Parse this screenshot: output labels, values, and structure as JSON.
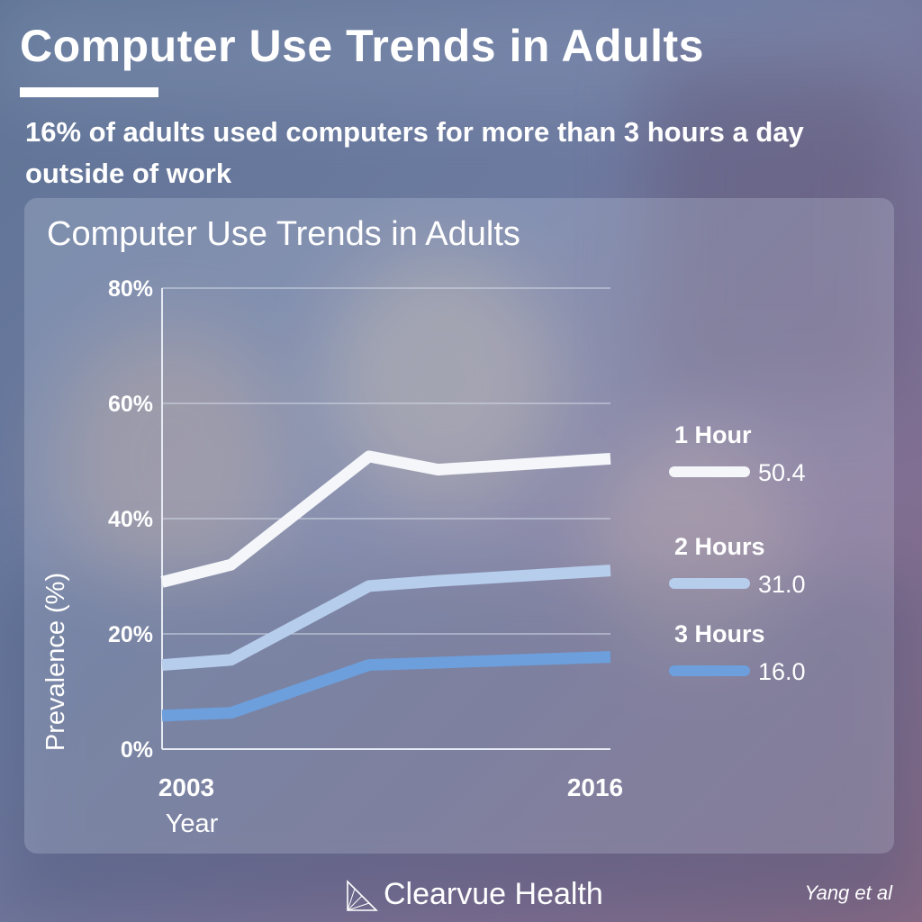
{
  "page": {
    "title": "Computer Use Trends in Adults",
    "subtitle": "16% of adults used computers for more than 3 hours a day outside of work",
    "brand": "Clearvue Health",
    "credit": "Yang et al"
  },
  "colors": {
    "series_1": "#f4f6fa",
    "series_2": "#b7cdec",
    "series_3": "#6c9fdc",
    "gridline": "#d4dbe8",
    "text": "#ffffff"
  },
  "chart_data": {
    "type": "line",
    "title": "Computer Use Trends in Adults",
    "xlabel": "Year",
    "ylabel": "Prevalence (%)",
    "x": [
      2003,
      2005,
      2009,
      2011,
      2016
    ],
    "x_tick_labels": [
      "2003",
      "2016"
    ],
    "ylim": [
      0,
      80
    ],
    "y_ticks": [
      0,
      20,
      40,
      60,
      80
    ],
    "y_tick_labels": [
      "0%",
      "20%",
      "40%",
      "60%",
      "80%"
    ],
    "grid": true,
    "legend_placement": "right",
    "series": [
      {
        "name": "1 Hour",
        "values": [
          29.0,
          32.0,
          50.8,
          48.5,
          50.4
        ],
        "end_label": "50.4",
        "color": "#f4f6fa"
      },
      {
        "name": "2 Hours",
        "values": [
          14.6,
          15.5,
          28.3,
          29.2,
          31.0
        ],
        "end_label": "31.0",
        "color": "#b7cdec"
      },
      {
        "name": "3 Hours",
        "values": [
          5.8,
          6.3,
          14.6,
          15.0,
          16.0
        ],
        "end_label": "16.0",
        "color": "#6c9fdc"
      }
    ]
  }
}
